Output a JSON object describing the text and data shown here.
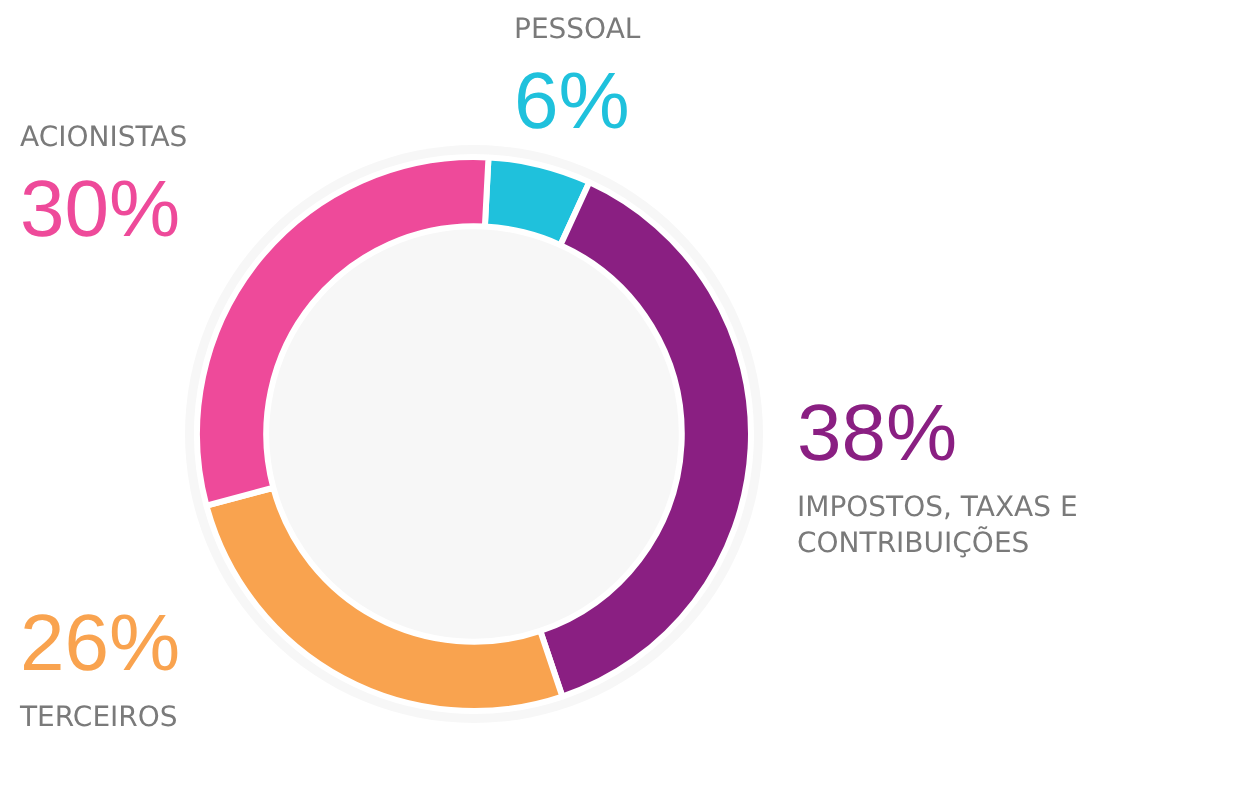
{
  "chart_data": {
    "type": "donut",
    "categories": [
      "PESSOAL",
      "IMPOSTOS, TAXAS E\nCONTRIBUIÇÕES",
      "TERCEIROS",
      "ACIONISTAS"
    ],
    "values": [
      6,
      38,
      26,
      30
    ],
    "colors": [
      "#1fc1dc",
      "#8a1f82",
      "#f9a34f",
      "#ee4a9a"
    ],
    "value_labels": [
      "6%",
      "38%",
      "26%",
      "30%"
    ],
    "legend": false
  }
}
